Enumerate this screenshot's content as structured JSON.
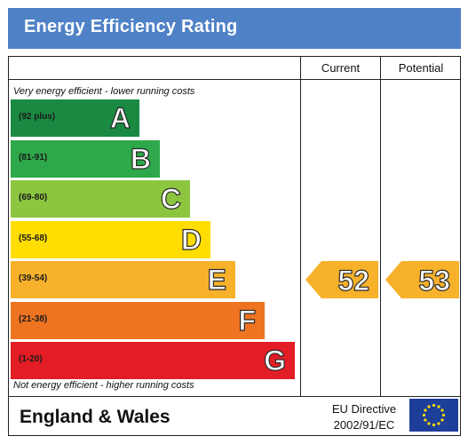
{
  "title": "Energy Efficiency Rating",
  "columns": {
    "current": "Current",
    "potential": "Potential"
  },
  "captions": {
    "top": "Very energy efficient - lower running costs",
    "bottom": "Not energy efficient - higher running costs"
  },
  "footer": {
    "region": "England & Wales",
    "directive_line1": "EU Directive",
    "directive_line2": "2002/91/EC",
    "flag_icon": "eu-flag-icon"
  },
  "chart_data": {
    "type": "bar",
    "bands": [
      {
        "letter": "A",
        "range": "(92 plus)",
        "min": 92,
        "max": 100,
        "color": "#1a8a43"
      },
      {
        "letter": "B",
        "range": "(81-91)",
        "min": 81,
        "max": 91,
        "color": "#2ea84a"
      },
      {
        "letter": "C",
        "range": "(69-80)",
        "min": 69,
        "max": 80,
        "color": "#8cc63f"
      },
      {
        "letter": "D",
        "range": "(55-68)",
        "min": 55,
        "max": 68,
        "color": "#ffdd00"
      },
      {
        "letter": "E",
        "range": "(39-54)",
        "min": 39,
        "max": 54,
        "color": "#f7b12b"
      },
      {
        "letter": "F",
        "range": "(21-38)",
        "min": 21,
        "max": 38,
        "color": "#ee7422"
      },
      {
        "letter": "G",
        "range": "(1-20)",
        "min": 1,
        "max": 20,
        "color": "#e31d25"
      }
    ],
    "current": {
      "value": 52,
      "band": "E",
      "label": "52",
      "color": "#f7b12b"
    },
    "potential": {
      "value": 53,
      "band": "E",
      "label": "53",
      "color": "#f7b12b"
    }
  }
}
